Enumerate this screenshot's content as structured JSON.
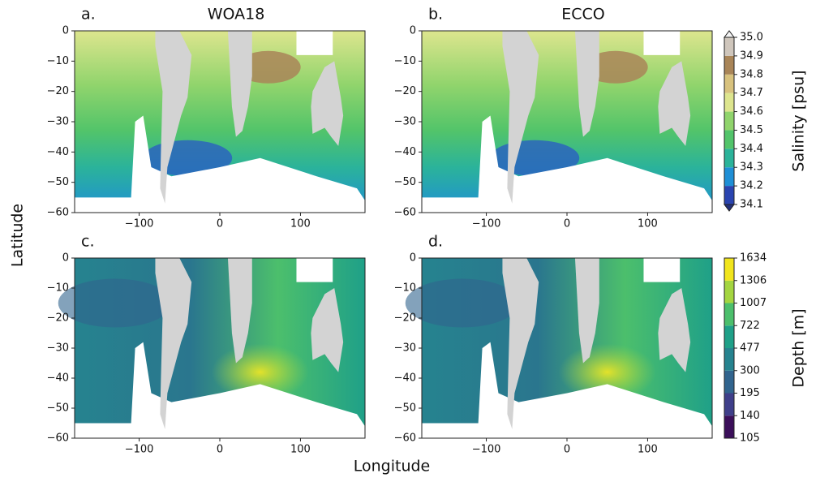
{
  "figure": {
    "x_label": "Longitude",
    "y_label": "Latitude"
  },
  "chart_data": [
    {
      "type": "map",
      "label": "a.",
      "title": "WOA18",
      "xlim": [
        -180,
        180
      ],
      "ylim": [
        -60,
        0
      ],
      "xticks": [
        {
          "value": -100,
          "label": "−100"
        },
        0,
        100
      ],
      "yticks": [
        0,
        {
          "value": -10,
          "label": "−10"
        },
        {
          "value": -20,
          "label": "−20"
        },
        {
          "value": -30,
          "label": "−30"
        },
        {
          "value": -40,
          "label": "−40"
        },
        {
          "value": -50,
          "label": "−50"
        },
        {
          "value": -60,
          "label": "−60"
        }
      ]
    },
    {
      "type": "map",
      "label": "b.",
      "title": "ECCO",
      "xlim": [
        -180,
        180
      ],
      "ylim": [
        -60,
        0
      ],
      "xticks": [
        {
          "value": -100,
          "label": "−100"
        },
        0,
        100
      ],
      "yticks": [
        0,
        {
          "value": -10,
          "label": "−10"
        },
        {
          "value": -20,
          "label": "−20"
        },
        {
          "value": -30,
          "label": "−30"
        },
        {
          "value": -40,
          "label": "−40"
        },
        {
          "value": -50,
          "label": "−50"
        },
        {
          "value": -60,
          "label": "−60"
        }
      ]
    },
    {
      "type": "map",
      "label": "c.",
      "xlim": [
        -180,
        180
      ],
      "ylim": [
        -60,
        0
      ],
      "xticks": [
        {
          "value": -100,
          "label": "−100"
        },
        0,
        100
      ],
      "yticks": [
        0,
        {
          "value": -10,
          "label": "−10"
        },
        {
          "value": -20,
          "label": "−20"
        },
        {
          "value": -30,
          "label": "−30"
        },
        {
          "value": -40,
          "label": "−40"
        },
        {
          "value": -50,
          "label": "−50"
        },
        {
          "value": -60,
          "label": "−60"
        }
      ]
    },
    {
      "type": "map",
      "label": "d.",
      "xlim": [
        -180,
        180
      ],
      "ylim": [
        -60,
        0
      ],
      "xticks": [
        {
          "value": -100,
          "label": "−100"
        },
        0,
        100
      ],
      "yticks": [
        0,
        {
          "value": -10,
          "label": "−10"
        },
        {
          "value": -20,
          "label": "−20"
        },
        {
          "value": -30,
          "label": "−30"
        },
        {
          "value": -40,
          "label": "−40"
        },
        {
          "value": -50,
          "label": "−50"
        },
        {
          "value": -60,
          "label": "−60"
        }
      ]
    }
  ],
  "colorbars": [
    {
      "label": "Salinity [psu]",
      "ticks": [
        34.1,
        34.2,
        34.3,
        34.4,
        34.5,
        34.6,
        34.7,
        34.8,
        34.9,
        {
          "value": 35,
          "label": "35.0"
        }
      ],
      "colors": [
        "#2a44b0",
        "#1f8fd6",
        "#2bb39a",
        "#52c46a",
        "#90d46c",
        "#dde58e",
        "#d8c27e",
        "#a98558",
        "#cfc6bc"
      ]
    },
    {
      "label": "Depth [m]",
      "ticks": [
        105,
        140,
        195,
        300,
        477,
        722,
        1007,
        1306,
        1634
      ],
      "colors": [
        "#3b0f5a",
        "#3f3f8a",
        "#31648e",
        "#26838f",
        "#1fa088",
        "#4cbf6c",
        "#a4d540",
        "#f1e51d"
      ]
    }
  ]
}
